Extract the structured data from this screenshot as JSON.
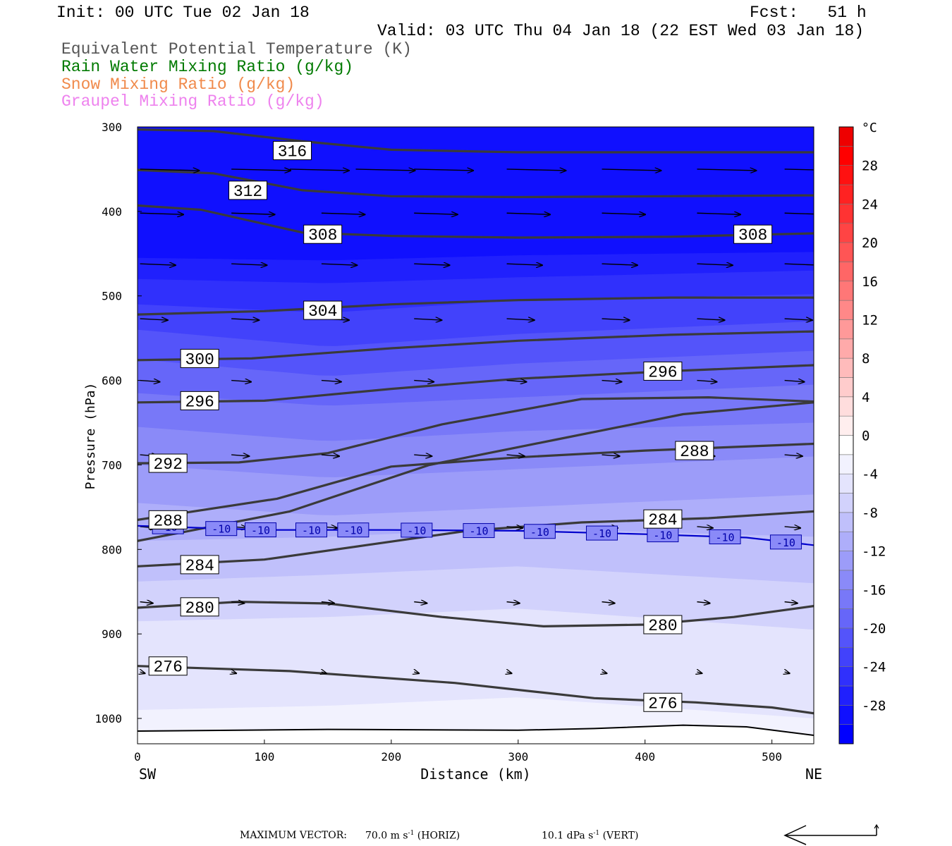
{
  "header": {
    "init": "Init: 00 UTC Tue 02 Jan 18",
    "fcst": "Fcst:   51 h",
    "valid": "Valid: 03 UTC Thu 04 Jan 18 (22 EST Wed 03 Jan 18)",
    "fields": [
      {
        "label": "Equivalent Potential Temperature (K)",
        "color": "#555555"
      },
      {
        "label": "Rain Water Mixing Ratio (g/kg)",
        "color": "#007a00"
      },
      {
        "label": "Snow Mixing Ratio (g/kg)",
        "color": "#f08a4b"
      },
      {
        "label": "Graupel Mixing Ratio (g/kg)",
        "color": "#ee82ee"
      }
    ]
  },
  "chart_data": {
    "type": "cross-section",
    "xlabel": "Distance (km)",
    "ylabel": "Pressure (hPa)",
    "xlim": [
      0,
      533
    ],
    "ylim": [
      1030,
      300
    ],
    "x_ticks": [
      0,
      100,
      200,
      300,
      400,
      500
    ],
    "y_ticks": [
      300,
      400,
      500,
      600,
      700,
      800,
      900,
      1000
    ],
    "x_end_labels": {
      "left": "SW",
      "right": "NE"
    },
    "colorbar": {
      "unit": "°C",
      "levels": [
        -32,
        -30,
        -28,
        -26,
        -24,
        -22,
        -20,
        -18,
        -16,
        -14,
        -12,
        -10,
        -8,
        -6,
        -4,
        -2,
        0,
        2,
        4,
        6,
        8,
        10,
        12,
        14,
        16,
        18,
        20,
        22,
        24,
        26,
        28,
        30,
        32
      ],
      "tick_labels": [
        28,
        24,
        20,
        16,
        12,
        8,
        4,
        0,
        -4,
        -8,
        -12,
        -16,
        -20,
        -24,
        -28
      ],
      "colors": [
        "#0000ff",
        "#1010fe",
        "#2020fd",
        "#3030fc",
        "#4242fb",
        "#5454fa",
        "#6666f9",
        "#7878f8",
        "#8a8af8",
        "#9c9cf9",
        "#aeaefa",
        "#c0c0fb",
        "#d2d2fc",
        "#e4e4fd",
        "#f2f2fe",
        "#ffffff",
        "#ffeeee",
        "#ffdddd",
        "#ffcccc",
        "#ffbbbb",
        "#ffaaaa",
        "#ff9999",
        "#ff8888",
        "#ff7777",
        "#ff6666",
        "#ff5555",
        "#ff4444",
        "#ff3333",
        "#ff2222",
        "#ff1111",
        "#ff0000",
        "#ee0000"
      ]
    },
    "temperature_bands": [
      {
        "temp": -30,
        "profile": [
          [
            0,
            300
          ],
          [
            533,
            300
          ]
        ]
      },
      {
        "temp": -28,
        "profile": [
          [
            0,
            455
          ],
          [
            150,
            458
          ],
          [
            300,
            452
          ],
          [
            533,
            448
          ]
        ]
      },
      {
        "temp": -26,
        "profile": [
          [
            0,
            480
          ],
          [
            150,
            485
          ],
          [
            300,
            478
          ],
          [
            533,
            470
          ]
        ]
      },
      {
        "temp": -24,
        "profile": [
          [
            0,
            510
          ],
          [
            150,
            520
          ],
          [
            300,
            505
          ],
          [
            533,
            498
          ]
        ]
      },
      {
        "temp": -22,
        "profile": [
          [
            0,
            540
          ],
          [
            150,
            560
          ],
          [
            300,
            545
          ],
          [
            533,
            530
          ]
        ]
      },
      {
        "temp": -20,
        "profile": [
          [
            0,
            575
          ],
          [
            150,
            595
          ],
          [
            300,
            580
          ],
          [
            533,
            565
          ]
        ]
      },
      {
        "temp": -18,
        "profile": [
          [
            0,
            615
          ],
          [
            150,
            630
          ],
          [
            300,
            620
          ],
          [
            533,
            605
          ]
        ]
      },
      {
        "temp": -16,
        "profile": [
          [
            0,
            655
          ],
          [
            150,
            672
          ],
          [
            300,
            660
          ],
          [
            533,
            650
          ]
        ]
      },
      {
        "temp": -14,
        "profile": [
          [
            0,
            700
          ],
          [
            150,
            715
          ],
          [
            300,
            705
          ],
          [
            533,
            690
          ]
        ]
      },
      {
        "temp": -12,
        "profile": [
          [
            0,
            745
          ],
          [
            150,
            760
          ],
          [
            300,
            750
          ],
          [
            533,
            735
          ]
        ]
      },
      {
        "temp": -10,
        "profile": [
          [
            0,
            790
          ],
          [
            150,
            785
          ],
          [
            300,
            775
          ],
          [
            533,
            785
          ]
        ]
      },
      {
        "temp": -8,
        "profile": [
          [
            0,
            838
          ],
          [
            150,
            830
          ],
          [
            300,
            820
          ],
          [
            533,
            840
          ]
        ]
      },
      {
        "temp": -6,
        "profile": [
          [
            0,
            885
          ],
          [
            150,
            880
          ],
          [
            300,
            870
          ],
          [
            533,
            895
          ]
        ]
      },
      {
        "temp": -4,
        "profile": [
          [
            0,
            990
          ],
          [
            150,
            985
          ],
          [
            300,
            975
          ],
          [
            533,
            1000
          ]
        ]
      },
      {
        "temp": -2,
        "profile": [
          [
            0,
            1025
          ],
          [
            300,
            1022
          ],
          [
            533,
            1030
          ]
        ]
      }
    ],
    "theta_e_contours": [
      {
        "level": 316,
        "points": [
          [
            0,
            303
          ],
          [
            60,
            305
          ],
          [
            130,
            317
          ],
          [
            200,
            327
          ],
          [
            300,
            330
          ],
          [
            420,
            330
          ],
          [
            533,
            330
          ]
        ]
      },
      {
        "level": 312,
        "points": [
          [
            0,
            351
          ],
          [
            60,
            355
          ],
          [
            130,
            375
          ],
          [
            200,
            382
          ],
          [
            300,
            383
          ],
          [
            420,
            382
          ],
          [
            533,
            381
          ]
        ]
      },
      {
        "level": 308,
        "points": [
          [
            0,
            393
          ],
          [
            50,
            398
          ],
          [
            130,
            425
          ],
          [
            200,
            429
          ],
          [
            300,
            431
          ],
          [
            420,
            430
          ],
          [
            533,
            426
          ]
        ]
      },
      {
        "level": 304,
        "points": [
          [
            0,
            522
          ],
          [
            100,
            518
          ],
          [
            200,
            510
          ],
          [
            300,
            505
          ],
          [
            420,
            502
          ],
          [
            533,
            502
          ]
        ]
      },
      {
        "level": 300,
        "points": [
          [
            0,
            576
          ],
          [
            90,
            574
          ],
          [
            200,
            562
          ],
          [
            300,
            553
          ],
          [
            420,
            546
          ],
          [
            533,
            542
          ]
        ]
      },
      {
        "level": 296,
        "points": [
          [
            0,
            626
          ],
          [
            100,
            624
          ],
          [
            200,
            610
          ],
          [
            300,
            598
          ],
          [
            420,
            589
          ],
          [
            533,
            582
          ]
        ]
      },
      {
        "level": "296b",
        "points": [
          [
            0,
            790
          ],
          [
            120,
            755
          ],
          [
            230,
            700
          ],
          [
            330,
            670
          ],
          [
            430,
            640
          ],
          [
            533,
            626
          ]
        ]
      },
      {
        "level": 292,
        "points": [
          [
            0,
            698
          ],
          [
            80,
            697
          ],
          [
            150,
            686
          ],
          [
            240,
            652
          ],
          [
            350,
            622
          ],
          [
            450,
            620
          ],
          [
            533,
            625
          ]
        ]
      },
      {
        "level": 288,
        "points": [
          [
            0,
            765
          ],
          [
            110,
            740
          ],
          [
            200,
            702
          ],
          [
            300,
            691
          ],
          [
            400,
            683
          ],
          [
            533,
            675
          ]
        ]
      },
      {
        "level": 284,
        "points": [
          [
            0,
            820
          ],
          [
            100,
            812
          ],
          [
            180,
            795
          ],
          [
            260,
            778
          ],
          [
            350,
            768
          ],
          [
            450,
            763
          ],
          [
            533,
            755
          ]
        ]
      },
      {
        "level": 280,
        "points": [
          [
            0,
            869
          ],
          [
            80,
            862
          ],
          [
            150,
            864
          ],
          [
            240,
            880
          ],
          [
            320,
            891
          ],
          [
            400,
            889
          ],
          [
            470,
            880
          ],
          [
            533,
            867
          ]
        ]
      },
      {
        "level": 276,
        "points": [
          [
            0,
            938
          ],
          [
            120,
            944
          ],
          [
            250,
            958
          ],
          [
            360,
            976
          ],
          [
            440,
            981
          ],
          [
            500,
            987
          ],
          [
            533,
            994
          ]
        ]
      }
    ],
    "contour_labels": [
      {
        "text": "316",
        "x": 122,
        "p": 328
      },
      {
        "text": "312",
        "x": 87,
        "p": 375
      },
      {
        "text": "308",
        "x": 146,
        "p": 427
      },
      {
        "text": "308",
        "x": 485,
        "p": 427
      },
      {
        "text": "304",
        "x": 146,
        "p": 517
      },
      {
        "text": "300",
        "x": 49,
        "p": 574
      },
      {
        "text": "296",
        "x": 49,
        "p": 624
      },
      {
        "text": "296",
        "x": 414,
        "p": 589
      },
      {
        "text": "292",
        "x": 24,
        "p": 698
      },
      {
        "text": "288",
        "x": 24,
        "p": 765
      },
      {
        "text": "288",
        "x": 439,
        "p": 683
      },
      {
        "text": "284",
        "x": 49,
        "p": 818
      },
      {
        "text": "284",
        "x": 414,
        "p": 764
      },
      {
        "text": "280",
        "x": 49,
        "p": 868
      },
      {
        "text": "280",
        "x": 414,
        "p": 889
      },
      {
        "text": "276",
        "x": 24,
        "p": 938
      },
      {
        "text": "276",
        "x": 414,
        "p": 981
      }
    ],
    "minus10_isotherm": {
      "label": "-10",
      "points": [
        [
          0,
          772
        ],
        [
          100,
          777
        ],
        [
          200,
          777
        ],
        [
          300,
          778
        ],
        [
          400,
          782
        ],
        [
          480,
          786
        ],
        [
          533,
          795
        ]
      ],
      "labels_x": [
        24,
        66,
        97,
        137,
        170,
        220,
        269,
        317,
        366,
        414,
        463,
        511
      ]
    },
    "ground_line": [
      [
        0,
        1015
      ],
      [
        150,
        1013
      ],
      [
        300,
        1014
      ],
      [
        360,
        1012
      ],
      [
        430,
        1008
      ],
      [
        480,
        1010
      ],
      [
        533,
        1020
      ]
    ],
    "wind_vectors": [
      {
        "p": 350,
        "x0": [
          2,
          74,
          120,
          172,
          218,
          291,
          366,
          441,
          510
        ],
        "u": 60
      },
      {
        "p": 402,
        "x0": [
          2,
          74,
          145,
          218,
          291,
          366,
          441,
          510
        ],
        "u": 44
      },
      {
        "p": 462,
        "x0": [
          2,
          74,
          145,
          218,
          291,
          366,
          441,
          510
        ],
        "u": 36
      },
      {
        "p": 527,
        "x0": [
          2,
          74,
          145,
          218,
          291,
          366,
          441,
          510
        ],
        "u": 28
      },
      {
        "p": 600,
        "x0": [
          2,
          74,
          145,
          218,
          291,
          366,
          441,
          510
        ],
        "u": 20
      },
      {
        "p": 688,
        "x0": [
          2,
          74,
          145,
          218,
          291,
          366,
          441,
          510
        ],
        "u": 18
      },
      {
        "p": 773,
        "x0": [
          2,
          74,
          145,
          218,
          291,
          366,
          441,
          510
        ],
        "u": 16
      },
      {
        "p": 862,
        "x0": [
          2,
          74,
          145,
          218,
          291,
          366,
          441,
          510
        ],
        "u": 13
      },
      {
        "p": 945,
        "x0": [
          2,
          74,
          145,
          218,
          291,
          366,
          441,
          510
        ],
        "u": 5
      }
    ]
  },
  "footer": {
    "max_vector_label": "MAXIMUM VECTOR:",
    "horiz_value": "70.0 m s",
    "horiz_exp": "-1",
    "horiz_tag": "(HORIZ)",
    "vert_value": "10.1 dPa s",
    "vert_exp": "-1",
    "vert_tag": "(VERT)"
  }
}
